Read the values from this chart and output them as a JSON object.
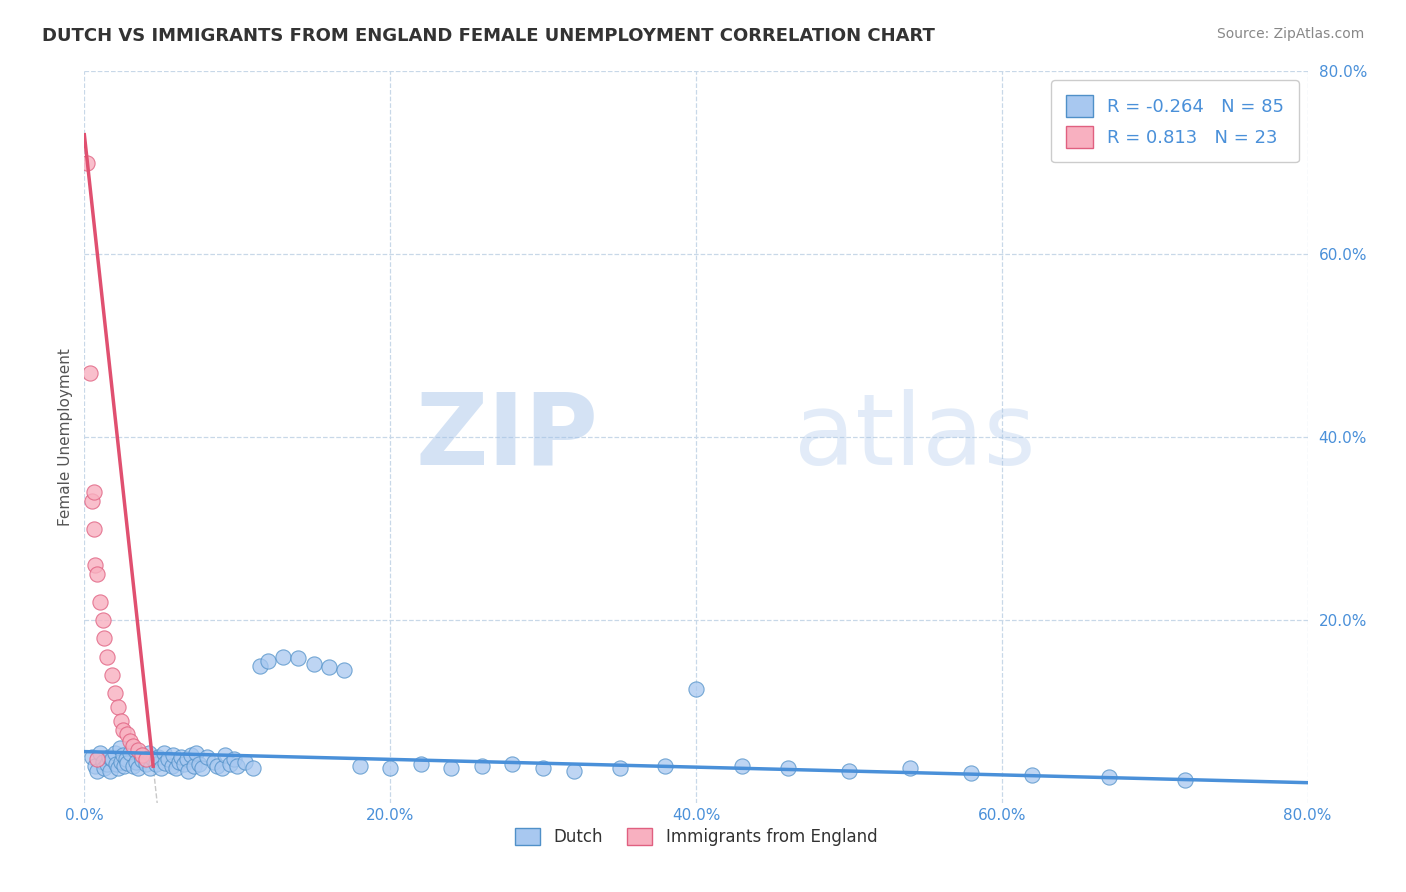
{
  "title": "DUTCH VS IMMIGRANTS FROM ENGLAND FEMALE UNEMPLOYMENT CORRELATION CHART",
  "source_text": "Source: ZipAtlas.com",
  "ylabel": "Female Unemployment",
  "xlim": [
    0.0,
    0.8
  ],
  "ylim": [
    0.0,
    0.8
  ],
  "xticks": [
    0.0,
    0.2,
    0.4,
    0.6,
    0.8
  ],
  "yticks": [
    0.0,
    0.2,
    0.4,
    0.6,
    0.8
  ],
  "xtick_labels": [
    "0.0%",
    "20.0%",
    "40.0%",
    "60.0%",
    "80.0%"
  ],
  "ytick_labels": [
    "",
    "20.0%",
    "40.0%",
    "60.0%",
    "80.0%"
  ],
  "dutch_color": "#A8C8F0",
  "dutch_edge_color": "#5090C8",
  "immigrants_color": "#F8B0C0",
  "immigrants_edge_color": "#E06080",
  "regression_dutch_color": "#4A90D9",
  "regression_immigrants_color": "#E05070",
  "dutch_R": -0.264,
  "dutch_N": 85,
  "immigrants_R": 0.813,
  "immigrants_N": 23,
  "legend_label_dutch": "Dutch",
  "legend_label_immigrants": "Immigrants from England",
  "watermark_zip": "ZIP",
  "watermark_atlas": "atlas",
  "background_color": "#ffffff",
  "grid_color": "#C8D8E8",
  "title_color": "#333333",
  "axis_label_color": "#555555",
  "tick_label_color": "#4A90D9",
  "legend_R_color": "#4A90D9",
  "dutch_points_x": [
    0.005,
    0.007,
    0.008,
    0.01,
    0.012,
    0.013,
    0.015,
    0.016,
    0.017,
    0.018,
    0.02,
    0.021,
    0.022,
    0.023,
    0.024,
    0.025,
    0.026,
    0.027,
    0.028,
    0.03,
    0.032,
    0.033,
    0.034,
    0.035,
    0.037,
    0.038,
    0.04,
    0.042,
    0.043,
    0.045,
    0.047,
    0.048,
    0.05,
    0.052,
    0.053,
    0.055,
    0.057,
    0.058,
    0.06,
    0.062,
    0.063,
    0.065,
    0.067,
    0.068,
    0.07,
    0.072,
    0.073,
    0.075,
    0.077,
    0.08,
    0.085,
    0.087,
    0.09,
    0.092,
    0.095,
    0.098,
    0.1,
    0.105,
    0.11,
    0.115,
    0.12,
    0.13,
    0.14,
    0.15,
    0.16,
    0.17,
    0.18,
    0.2,
    0.22,
    0.24,
    0.26,
    0.28,
    0.3,
    0.32,
    0.35,
    0.38,
    0.4,
    0.43,
    0.46,
    0.5,
    0.54,
    0.58,
    0.62,
    0.67,
    0.72
  ],
  "dutch_points_y": [
    0.05,
    0.04,
    0.035,
    0.055,
    0.045,
    0.038,
    0.042,
    0.05,
    0.035,
    0.048,
    0.055,
    0.042,
    0.038,
    0.06,
    0.045,
    0.052,
    0.04,
    0.048,
    0.043,
    0.055,
    0.04,
    0.058,
    0.045,
    0.038,
    0.052,
    0.047,
    0.042,
    0.055,
    0.038,
    0.048,
    0.042,
    0.05,
    0.038,
    0.055,
    0.043,
    0.048,
    0.04,
    0.052,
    0.038,
    0.045,
    0.05,
    0.042,
    0.048,
    0.035,
    0.052,
    0.04,
    0.055,
    0.042,
    0.038,
    0.05,
    0.045,
    0.04,
    0.038,
    0.052,
    0.042,
    0.048,
    0.04,
    0.045,
    0.038,
    0.15,
    0.155,
    0.16,
    0.158,
    0.152,
    0.148,
    0.145,
    0.04,
    0.038,
    0.042,
    0.038,
    0.04,
    0.042,
    0.038,
    0.035,
    0.038,
    0.04,
    0.125,
    0.04,
    0.038,
    0.035,
    0.038,
    0.033,
    0.03,
    0.028,
    0.025
  ],
  "immigrants_points_x": [
    0.002,
    0.004,
    0.005,
    0.006,
    0.006,
    0.007,
    0.008,
    0.01,
    0.012,
    0.013,
    0.015,
    0.018,
    0.02,
    0.022,
    0.024,
    0.025,
    0.028,
    0.03,
    0.032,
    0.035,
    0.038,
    0.04,
    0.008
  ],
  "immigrants_points_y": [
    0.7,
    0.47,
    0.33,
    0.34,
    0.3,
    0.26,
    0.25,
    0.22,
    0.2,
    0.18,
    0.16,
    0.14,
    0.12,
    0.105,
    0.09,
    0.08,
    0.075,
    0.068,
    0.062,
    0.058,
    0.052,
    0.048,
    0.048
  ]
}
